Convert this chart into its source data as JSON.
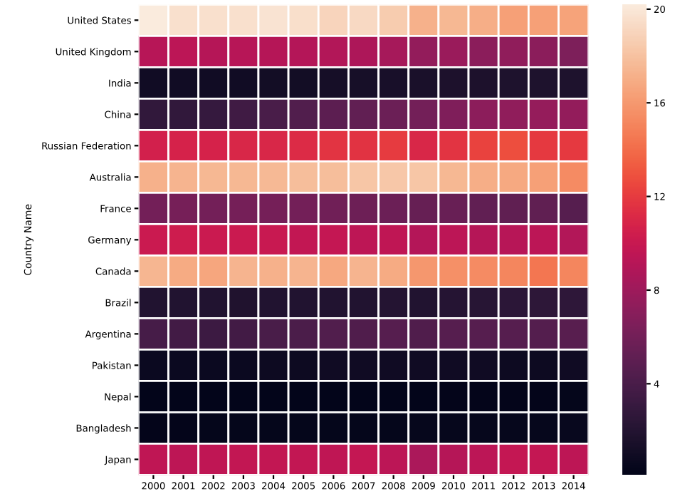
{
  "chart_data": {
    "type": "heatmap",
    "ylabel": "Country Name",
    "categories": [
      "2000",
      "2001",
      "2002",
      "2003",
      "2004",
      "2005",
      "2006",
      "2007",
      "2008",
      "2009",
      "2010",
      "2011",
      "2012",
      "2013",
      "2014"
    ],
    "y_categories": [
      "United States",
      "United Kingdom",
      "India",
      "China",
      "Russian Federation",
      "Australia",
      "France",
      "Germany",
      "Canada",
      "Brazil",
      "Argentina",
      "Pakistan",
      "Nepal",
      "Bangladesh",
      "Japan"
    ],
    "cells": [
      [
        20.2,
        19.6,
        19.6,
        19.6,
        19.8,
        19.5,
        19.0,
        19.2,
        18.5,
        17.2,
        17.5,
        17.0,
        16.3,
        16.3,
        16.5
      ],
      [
        9.2,
        9.4,
        9.1,
        9.2,
        9.1,
        9.0,
        8.9,
        8.7,
        8.4,
        7.5,
        7.8,
        7.1,
        7.4,
        7.1,
        6.5
      ],
      [
        1.0,
        1.0,
        1.0,
        1.0,
        1.1,
        1.1,
        1.2,
        1.3,
        1.4,
        1.5,
        1.6,
        1.6,
        1.7,
        1.7,
        1.7
      ],
      [
        2.7,
        2.7,
        3.0,
        3.5,
        4.0,
        4.4,
        4.9,
        5.2,
        5.6,
        6.0,
        6.6,
        7.2,
        7.4,
        7.6,
        7.5
      ],
      [
        10.6,
        10.7,
        10.7,
        11.0,
        11.0,
        11.2,
        11.7,
        11.6,
        12.0,
        11.0,
        11.7,
        12.3,
        12.8,
        11.9,
        11.9
      ],
      [
        17.2,
        17.3,
        17.5,
        17.5,
        17.6,
        17.8,
        17.8,
        18.2,
        18.3,
        18.2,
        17.5,
        17.0,
        16.8,
        16.3,
        15.4
      ],
      [
        6.0,
        6.2,
        6.0,
        6.1,
        6.1,
        6.0,
        5.9,
        5.7,
        5.6,
        5.4,
        5.5,
        5.2,
        5.1,
        5.1,
        4.6
      ],
      [
        10.1,
        10.3,
        10.1,
        10.1,
        10.0,
        9.7,
        9.8,
        9.5,
        9.6,
        9.0,
        9.4,
        9.1,
        9.2,
        9.4,
        8.9
      ],
      [
        17.4,
        16.9,
        16.6,
        17.3,
        17.2,
        17.3,
        16.7,
        17.3,
        16.9,
        15.9,
        15.6,
        15.4,
        15.1,
        14.4,
        15.1
      ],
      [
        1.9,
        1.9,
        1.9,
        1.8,
        1.9,
        1.9,
        1.9,
        1.9,
        2.0,
        1.9,
        2.1,
        2.2,
        2.4,
        2.5,
        2.6
      ],
      [
        3.8,
        3.6,
        3.3,
        3.6,
        4.0,
        4.1,
        4.4,
        4.3,
        4.6,
        4.3,
        4.6,
        4.6,
        4.6,
        4.5,
        4.7
      ],
      [
        0.7,
        0.7,
        0.7,
        0.7,
        0.8,
        0.8,
        0.9,
        0.9,
        0.9,
        0.9,
        0.9,
        0.9,
        0.8,
        0.8,
        0.9
      ],
      [
        0.1,
        0.1,
        0.1,
        0.1,
        0.1,
        0.1,
        0.1,
        0.1,
        0.1,
        0.1,
        0.2,
        0.2,
        0.2,
        0.2,
        0.3
      ],
      [
        0.2,
        0.2,
        0.3,
        0.3,
        0.3,
        0.3,
        0.3,
        0.3,
        0.3,
        0.4,
        0.4,
        0.4,
        0.4,
        0.4,
        0.5
      ],
      [
        9.6,
        9.5,
        9.6,
        9.7,
        9.7,
        9.7,
        9.6,
        9.8,
        9.4,
        8.6,
        9.1,
        9.4,
        9.8,
        9.8,
        9.5
      ]
    ],
    "clim": [
      0.1,
      20.2
    ],
    "cticks": [
      4,
      8,
      12,
      16,
      20
    ]
  }
}
